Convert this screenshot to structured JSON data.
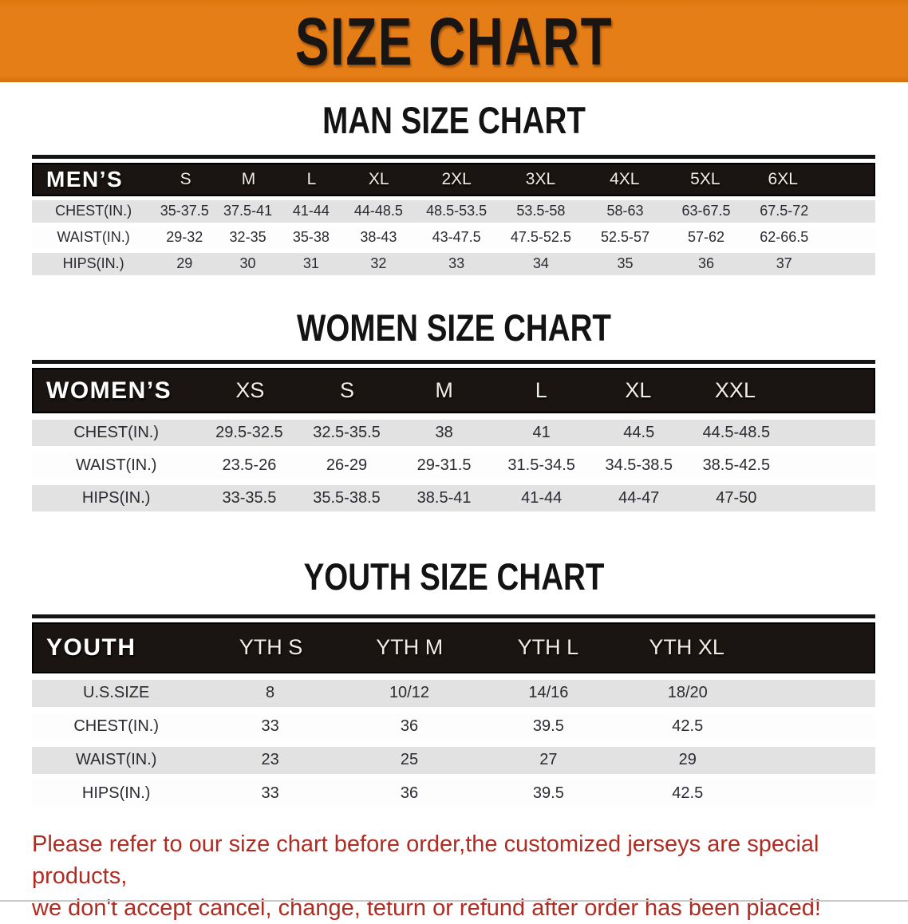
{
  "banner": {
    "title": "SIZE CHART"
  },
  "colors": {
    "banner_bg": "#e67e17",
    "table_header_bg": "#1a1512",
    "row_alt_bg": "#e2e2e2",
    "disclaimer_text": "#af2c22"
  },
  "sections": [
    {
      "heading": "MAN SIZE CHART",
      "table": {
        "header": [
          "MEN’S",
          "S",
          "M",
          "L",
          "XL",
          "2XL",
          "3XL",
          "4XL",
          "5XL",
          "6XL"
        ],
        "rows": [
          [
            "CHEST(IN.)",
            "35-37.5",
            "37.5-41",
            "41-44",
            "44-48.5",
            "48.5-53.5",
            "53.5-58",
            "58-63",
            "63-67.5",
            "67.5-72"
          ],
          [
            "WAIST(IN.)",
            "29-32",
            "32-35",
            "35-38",
            "38-43",
            "43-47.5",
            "47.5-52.5",
            "52.5-57",
            "57-62",
            "62-66.5"
          ],
          [
            "HIPS(IN.)",
            "29",
            "30",
            "31",
            "32",
            "33",
            "34",
            "35",
            "36",
            "37"
          ]
        ]
      }
    },
    {
      "heading": "WOMEN SIZE CHART",
      "table": {
        "header": [
          "WOMEN’S",
          "XS",
          "S",
          "M",
          "L",
          "XL",
          "XXL"
        ],
        "rows": [
          [
            "CHEST(IN.)",
            "29.5-32.5",
            "32.5-35.5",
            "38",
            "41",
            "44.5",
            "44.5-48.5"
          ],
          [
            "WAIST(IN.)",
            "23.5-26",
            "26-29",
            "29-31.5",
            "31.5-34.5",
            "34.5-38.5",
            "38.5-42.5"
          ],
          [
            "HIPS(IN.)",
            "33-35.5",
            "35.5-38.5",
            "38.5-41",
            "41-44",
            "44-47",
            "47-50"
          ]
        ]
      }
    },
    {
      "heading": "YOUTH SIZE CHART",
      "table": {
        "header": [
          "YOUTH",
          "YTH S",
          "YTH M",
          "YTH L",
          "YTH XL"
        ],
        "rows": [
          [
            "U.S.SIZE",
            "8",
            "10/12",
            "14/16",
            "18/20"
          ],
          [
            "CHEST(IN.)",
            "33",
            "36",
            "39.5",
            "42.5"
          ],
          [
            "WAIST(IN.)",
            "23",
            "25",
            "27",
            "29"
          ],
          [
            "HIPS(IN.)",
            "33",
            "36",
            "39.5",
            "42.5"
          ]
        ]
      }
    }
  ],
  "disclaimer": {
    "line1": "Please refer to our size chart before order,the customized jerseys are special products,",
    "line2": "we don't accept cancel, change, teturn or refund after order has been placed!"
  }
}
